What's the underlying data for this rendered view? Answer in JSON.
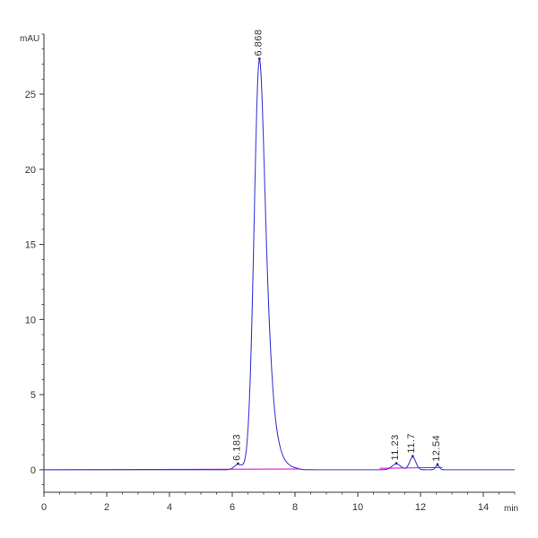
{
  "chart_data": {
    "type": "line",
    "title": "",
    "xlabel": "",
    "ylabel": "",
    "x_unit": "min",
    "y_unit": "mAU",
    "xlim": [
      0,
      15
    ],
    "ylim": [
      -1.5,
      29
    ],
    "x_ticks": [
      0,
      2,
      4,
      6,
      8,
      10,
      12,
      14
    ],
    "y_ticks": [
      0,
      5,
      10,
      15,
      20,
      25
    ],
    "grid": false,
    "legend": "none",
    "colors": {
      "trace": "#3b3bd6",
      "baseline": "#e000e0",
      "axis": "#333333",
      "marker": "#1a1a80"
    },
    "peaks": [
      {
        "label": "6.183",
        "rt": 6.183,
        "height": 0.35,
        "sigma": 0.12
      },
      {
        "label": "6.868",
        "rt": 6.868,
        "height": 27.3,
        "sigma": 0.17,
        "tail": 0.45
      },
      {
        "label": "11.23",
        "rt": 11.23,
        "height": 0.38,
        "sigma": 0.14
      },
      {
        "label": "11.7",
        "rt": 11.75,
        "height": 0.85,
        "sigma": 0.1
      },
      {
        "label": "12.54",
        "rt": 12.54,
        "height": 0.3,
        "sigma": 0.06
      }
    ],
    "baseline_segments": [
      {
        "x": [
          0,
          8.2
        ],
        "y": [
          0,
          0.05
        ]
      },
      {
        "x": [
          10.7,
          12.7
        ],
        "y": [
          0.1,
          0.15
        ]
      }
    ]
  }
}
